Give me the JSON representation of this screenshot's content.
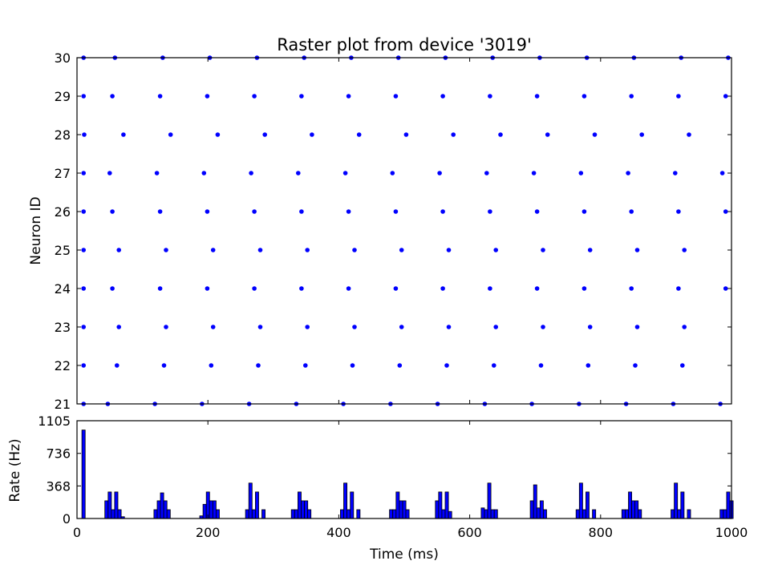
{
  "chart_data": [
    {
      "type": "scatter",
      "title": "Raster plot from device '3019'",
      "xlabel": "",
      "ylabel": "Neuron ID",
      "xlim": [
        0,
        1000
      ],
      "ylim": [
        21,
        30
      ],
      "yticks": [
        "21",
        "22",
        "23",
        "24",
        "25",
        "26",
        "27",
        "28",
        "29",
        "30"
      ],
      "marker_color": "#0000ff",
      "grid": false,
      "series": [
        {
          "neuron": 30,
          "x": [
            10,
            58,
            131,
            203,
            275,
            347,
            419,
            491,
            563,
            635,
            707,
            779,
            851,
            923,
            995
          ]
        },
        {
          "neuron": 29,
          "x": [
            10,
            54,
            127,
            199,
            271,
            343,
            415,
            487,
            559,
            631,
            703,
            775,
            847,
            919,
            991
          ]
        },
        {
          "neuron": 28,
          "x": [
            11,
            71,
            143,
            215,
            287,
            359,
            431,
            503,
            575,
            647,
            719,
            791,
            863,
            935
          ]
        },
        {
          "neuron": 27,
          "x": [
            10,
            50,
            122,
            194,
            266,
            338,
            410,
            482,
            554,
            626,
            698,
            770,
            842,
            914,
            986
          ]
        },
        {
          "neuron": 26,
          "x": [
            10,
            54,
            127,
            199,
            271,
            343,
            415,
            487,
            559,
            631,
            703,
            775,
            847,
            919,
            991
          ]
        },
        {
          "neuron": 25,
          "x": [
            10,
            64,
            136,
            208,
            280,
            352,
            424,
            496,
            568,
            640,
            712,
            784,
            856,
            928
          ]
        },
        {
          "neuron": 24,
          "x": [
            10,
            54,
            127,
            199,
            271,
            343,
            415,
            487,
            559,
            631,
            703,
            775,
            847,
            919,
            991
          ]
        },
        {
          "neuron": 23,
          "x": [
            10,
            64,
            136,
            208,
            280,
            352,
            424,
            496,
            568,
            640,
            712,
            784,
            856,
            928
          ]
        },
        {
          "neuron": 22,
          "x": [
            10,
            61,
            133,
            205,
            277,
            349,
            421,
            493,
            565,
            637,
            709,
            781,
            853,
            925
          ]
        },
        {
          "neuron": 21,
          "x": [
            10,
            47,
            119,
            191,
            263,
            335,
            407,
            479,
            551,
            623,
            695,
            767,
            839,
            911,
            983
          ]
        }
      ]
    },
    {
      "type": "bar",
      "xlabel": "Time (ms)",
      "ylabel": "Rate (Hz)",
      "xlim": [
        0,
        1000
      ],
      "ylim": [
        0,
        1105
      ],
      "xticks": [
        "0",
        "200",
        "400",
        "600",
        "800",
        "1000"
      ],
      "yticks": [
        "0",
        "368",
        "736",
        "1105"
      ],
      "bar_color": "#0000ff",
      "bin_width": 5,
      "bins": [
        {
          "x": 10,
          "value": 1000
        },
        {
          "x": 45,
          "value": 200
        },
        {
          "x": 50,
          "value": 300
        },
        {
          "x": 55,
          "value": 100
        },
        {
          "x": 60,
          "value": 300
        },
        {
          "x": 65,
          "value": 100
        },
        {
          "x": 70,
          "value": 20
        },
        {
          "x": 120,
          "value": 100
        },
        {
          "x": 125,
          "value": 200
        },
        {
          "x": 130,
          "value": 290
        },
        {
          "x": 135,
          "value": 200
        },
        {
          "x": 140,
          "value": 100
        },
        {
          "x": 190,
          "value": 30
        },
        {
          "x": 195,
          "value": 160
        },
        {
          "x": 200,
          "value": 300
        },
        {
          "x": 205,
          "value": 200
        },
        {
          "x": 210,
          "value": 200
        },
        {
          "x": 215,
          "value": 100
        },
        {
          "x": 260,
          "value": 100
        },
        {
          "x": 265,
          "value": 400
        },
        {
          "x": 270,
          "value": 100
        },
        {
          "x": 275,
          "value": 300
        },
        {
          "x": 285,
          "value": 100
        },
        {
          "x": 330,
          "value": 100
        },
        {
          "x": 335,
          "value": 100
        },
        {
          "x": 340,
          "value": 300
        },
        {
          "x": 345,
          "value": 200
        },
        {
          "x": 350,
          "value": 200
        },
        {
          "x": 355,
          "value": 100
        },
        {
          "x": 405,
          "value": 100
        },
        {
          "x": 410,
          "value": 400
        },
        {
          "x": 415,
          "value": 100
        },
        {
          "x": 420,
          "value": 300
        },
        {
          "x": 430,
          "value": 100
        },
        {
          "x": 480,
          "value": 100
        },
        {
          "x": 485,
          "value": 100
        },
        {
          "x": 490,
          "value": 300
        },
        {
          "x": 495,
          "value": 200
        },
        {
          "x": 500,
          "value": 200
        },
        {
          "x": 505,
          "value": 100
        },
        {
          "x": 550,
          "value": 200
        },
        {
          "x": 555,
          "value": 300
        },
        {
          "x": 560,
          "value": 100
        },
        {
          "x": 565,
          "value": 300
        },
        {
          "x": 570,
          "value": 80
        },
        {
          "x": 620,
          "value": 120
        },
        {
          "x": 625,
          "value": 100
        },
        {
          "x": 630,
          "value": 400
        },
        {
          "x": 635,
          "value": 100
        },
        {
          "x": 640,
          "value": 100
        },
        {
          "x": 695,
          "value": 200
        },
        {
          "x": 700,
          "value": 380
        },
        {
          "x": 705,
          "value": 120
        },
        {
          "x": 710,
          "value": 200
        },
        {
          "x": 715,
          "value": 100
        },
        {
          "x": 765,
          "value": 100
        },
        {
          "x": 770,
          "value": 400
        },
        {
          "x": 775,
          "value": 100
        },
        {
          "x": 780,
          "value": 300
        },
        {
          "x": 790,
          "value": 100
        },
        {
          "x": 835,
          "value": 100
        },
        {
          "x": 840,
          "value": 100
        },
        {
          "x": 845,
          "value": 300
        },
        {
          "x": 850,
          "value": 200
        },
        {
          "x": 855,
          "value": 200
        },
        {
          "x": 860,
          "value": 100
        },
        {
          "x": 910,
          "value": 100
        },
        {
          "x": 915,
          "value": 400
        },
        {
          "x": 920,
          "value": 100
        },
        {
          "x": 925,
          "value": 300
        },
        {
          "x": 935,
          "value": 100
        },
        {
          "x": 985,
          "value": 100
        },
        {
          "x": 990,
          "value": 100
        },
        {
          "x": 995,
          "value": 300
        },
        {
          "x": 1000,
          "value": 200
        }
      ]
    }
  ]
}
